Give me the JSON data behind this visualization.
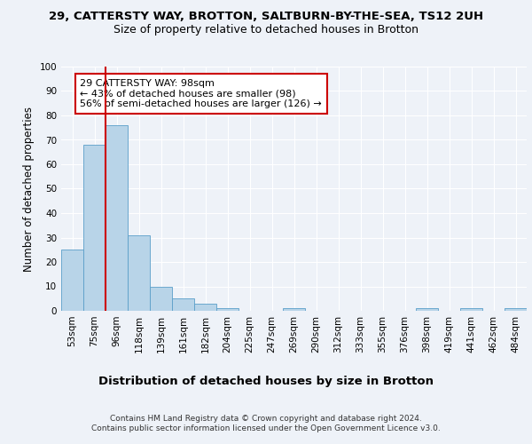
{
  "title1": "29, CATTERSTY WAY, BROTTON, SALTBURN-BY-THE-SEA, TS12 2UH",
  "title2": "Size of property relative to detached houses in Brotton",
  "xlabel": "Distribution of detached houses by size in Brotton",
  "ylabel": "Number of detached properties",
  "footnote": "Contains HM Land Registry data © Crown copyright and database right 2024.\nContains public sector information licensed under the Open Government Licence v3.0.",
  "categories": [
    "53sqm",
    "75sqm",
    "96sqm",
    "118sqm",
    "139sqm",
    "161sqm",
    "182sqm",
    "204sqm",
    "225sqm",
    "247sqm",
    "269sqm",
    "290sqm",
    "312sqm",
    "333sqm",
    "355sqm",
    "376sqm",
    "398sqm",
    "419sqm",
    "441sqm",
    "462sqm",
    "484sqm"
  ],
  "values": [
    25,
    68,
    76,
    31,
    10,
    5,
    3,
    1,
    0,
    0,
    1,
    0,
    0,
    0,
    0,
    0,
    1,
    0,
    1,
    0,
    1
  ],
  "bar_color": "#b8d4e8",
  "bar_edge_color": "#5a9ec9",
  "vline_color": "#cc0000",
  "annotation_text": "29 CATTERSTY WAY: 98sqm\n← 43% of detached houses are smaller (98)\n56% of semi-detached houses are larger (126) →",
  "annotation_box_color": "#ffffff",
  "annotation_box_edge": "#cc0000",
  "ylim": [
    0,
    100
  ],
  "yticks": [
    0,
    10,
    20,
    30,
    40,
    50,
    60,
    70,
    80,
    90,
    100
  ],
  "background_color": "#eef2f8",
  "plot_bg_color": "#eef2f8",
  "grid_color": "#ffffff",
  "title1_fontsize": 9.5,
  "title2_fontsize": 9,
  "xlabel_fontsize": 9.5,
  "ylabel_fontsize": 8.5,
  "tick_fontsize": 7.5,
  "annotation_fontsize": 8,
  "footnote_fontsize": 6.5
}
